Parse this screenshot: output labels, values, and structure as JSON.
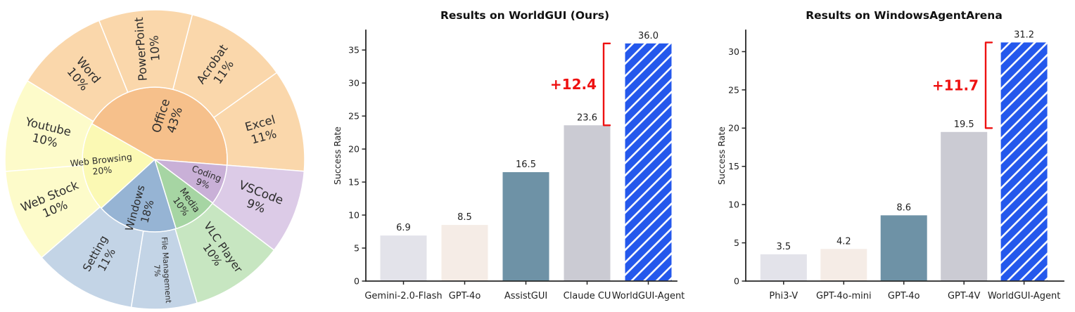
{
  "figure": {
    "background": "#ffffff",
    "text_color": "#1f1f1f",
    "spine_color": "#262626",
    "accent_red": "#ee1111",
    "highlight_blue": "#2458ec",
    "bar_palette": [
      "#e3e3ea",
      "#f5ece6",
      "#6e92a6",
      "#cbcbd3",
      "#2458ec"
    ]
  },
  "chart_data": [
    {
      "id": "task-app-distribution",
      "type": "pie",
      "variant": "sunburst",
      "start_angle_deg": -4.5,
      "direction": "ccw",
      "rings": [
        "category",
        "application"
      ],
      "label_color": "#2d2d2d",
      "segments": [
        {
          "label": "Office",
          "pct": 43,
          "color": "#f6c08b",
          "child_color": "#fad7ab",
          "children": [
            {
              "label": "Excel",
              "pct": 11
            },
            {
              "label": "Acrobat",
              "pct": 11
            },
            {
              "label": "PowerPoint",
              "pct": 10
            },
            {
              "label": "Word",
              "pct": 10
            }
          ]
        },
        {
          "label": "Web Browsing",
          "pct": 20,
          "color": "#fbf9b4",
          "child_color": "#fdfbca",
          "children": [
            {
              "label": "Youtube",
              "pct": 10
            },
            {
              "label": "Web Stock",
              "pct": 10
            }
          ]
        },
        {
          "label": "Windows",
          "pct": 18,
          "color": "#96b4d4",
          "child_color": "#c3d4e6",
          "children": [
            {
              "label": "Setting",
              "pct": 11
            },
            {
              "label": "File Management",
              "pct": 7
            }
          ]
        },
        {
          "label": "Media",
          "pct": 10,
          "color": "#a6d5a3",
          "child_color": "#c7e6c1",
          "children": [
            {
              "label": "VLC Player",
              "pct": 10
            }
          ]
        },
        {
          "label": "Coding",
          "pct": 9,
          "color": "#c9b0d7",
          "child_color": "#dccbe7",
          "children": [
            {
              "label": "VSCode",
              "pct": 9
            }
          ]
        }
      ]
    },
    {
      "id": "worldgui-results",
      "type": "bar",
      "title": "Results on WorldGUI (Ours)",
      "xlabel": "",
      "ylabel": "Success Rate",
      "categories": [
        "Gemini-2.0-Flash",
        "GPT-4o",
        "AssistGUI",
        "Claude CU",
        "WorldGUI-Agent"
      ],
      "values": [
        6.9,
        8.5,
        16.5,
        23.6,
        36.0
      ],
      "value_labels": [
        "6.9",
        "8.5",
        "16.5",
        "23.6",
        "36.0"
      ],
      "bar_colors": [
        "#e3e3ea",
        "#f5ece6",
        "#6e92a6",
        "#cbcbd3",
        "#2458ec"
      ],
      "hatched_bar": "WorldGUI-Agent",
      "hatch_style": "white-diagonal",
      "yticks": [
        0,
        5,
        10,
        15,
        20,
        25,
        30,
        35
      ],
      "ylim": [
        0,
        38
      ],
      "grid": false,
      "legend": "none",
      "annotation": {
        "text": "+12.4",
        "color": "#ee1111",
        "bracket_from_value": 23.6,
        "bracket_to_value": 36.0,
        "side": "left-of-highlight-bar"
      }
    },
    {
      "id": "windowsagentarena-results",
      "type": "bar",
      "title": "Results on WindowsAgentArena",
      "xlabel": "",
      "ylabel": "Success Rate",
      "categories": [
        "Phi3-V",
        "GPT-4o-mini",
        "GPT-4o",
        "GPT-4V",
        "WorldGUI-Agent"
      ],
      "values": [
        3.5,
        4.2,
        8.6,
        19.5,
        31.2
      ],
      "value_labels": [
        "3.5",
        "4.2",
        "8.6",
        "19.5",
        "31.2"
      ],
      "bar_colors": [
        "#e3e3ea",
        "#f5ece6",
        "#6e92a6",
        "#cbcbd3",
        "#2458ec"
      ],
      "hatched_bar": "WorldGUI-Agent",
      "hatch_style": "white-diagonal",
      "yticks": [
        0,
        5,
        10,
        15,
        20,
        25,
        30
      ],
      "ylim": [
        0,
        32.8
      ],
      "grid": false,
      "legend": "none",
      "annotation": {
        "text": "+11.7",
        "color": "#ee1111",
        "bracket_from_value": 20.0,
        "bracket_to_value": 31.2,
        "side": "left-of-highlight-bar"
      }
    }
  ]
}
